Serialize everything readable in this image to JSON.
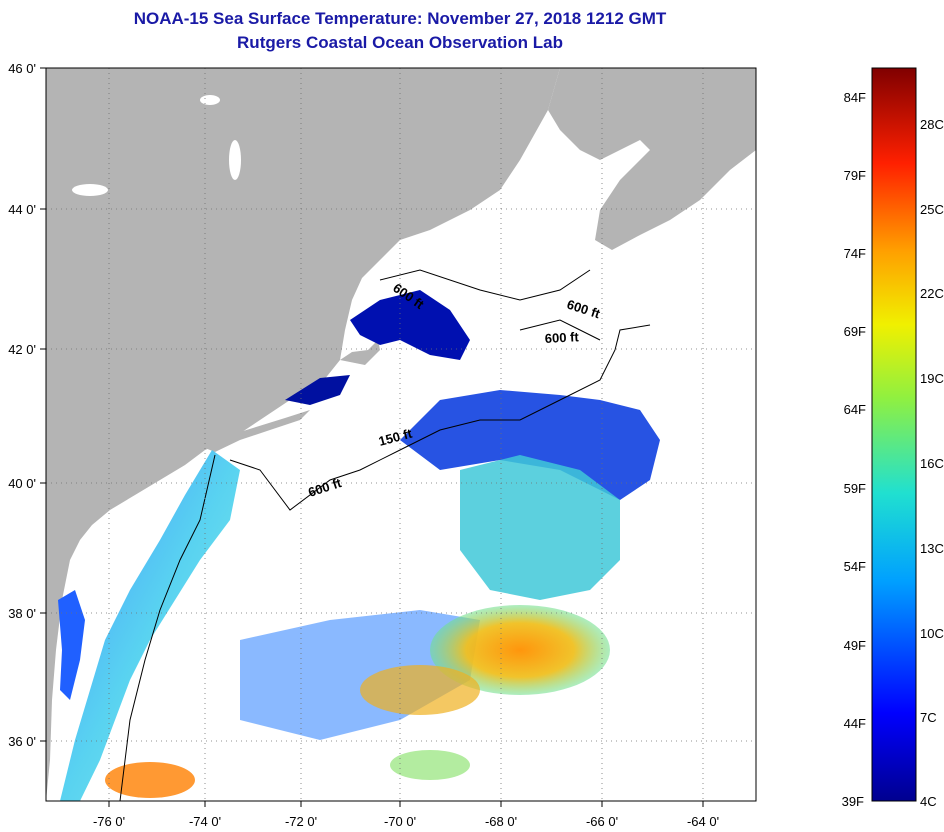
{
  "header": {
    "title": "NOAA-15 Sea Surface Temperature:  November 27, 2018 1212 GMT",
    "subtitle": "Rutgers Coastal Ocean Observation Lab"
  },
  "axes": {
    "lat_labels": [
      "46 0'",
      "44 0'",
      "42 0'",
      "40 0'",
      "38 0'",
      "36 0'"
    ],
    "lat_values": [
      46,
      44,
      42,
      40,
      38,
      36
    ],
    "lon_labels": [
      "-76 0'",
      "-74 0'",
      "-72 0'",
      "-70 0'",
      "-68 0'",
      "-66 0'",
      "-64 0'"
    ],
    "lon_values": [
      -76,
      -74,
      -72,
      -70,
      -68,
      -66,
      -64
    ],
    "lat_range": [
      35,
      46
    ],
    "lon_range": [
      -77,
      -62.5
    ]
  },
  "contours": {
    "labels": [
      "600 ft",
      "600 ft",
      "600 ft",
      "150 ft",
      "600 ft"
    ]
  },
  "colorbar": {
    "fahrenheit_labels": [
      "84F",
      "79F",
      "74F",
      "69F",
      "64F",
      "59F",
      "54F",
      "49F",
      "44F",
      "39F"
    ],
    "celsius_labels": [
      "28C",
      "25C",
      "22C",
      "19C",
      "16C",
      "13C",
      "10C",
      "7C",
      "4C"
    ]
  },
  "colors": {
    "title": "#1a1aa6",
    "land": "#b4b4b4",
    "ocean_no_data": "#ffffff",
    "sst_cold": "#00008f",
    "sst_cool": "#1e64ff",
    "sst_mid": "#50e6b4",
    "sst_warm": "#ffb400",
    "sst_hot": "#800000"
  }
}
